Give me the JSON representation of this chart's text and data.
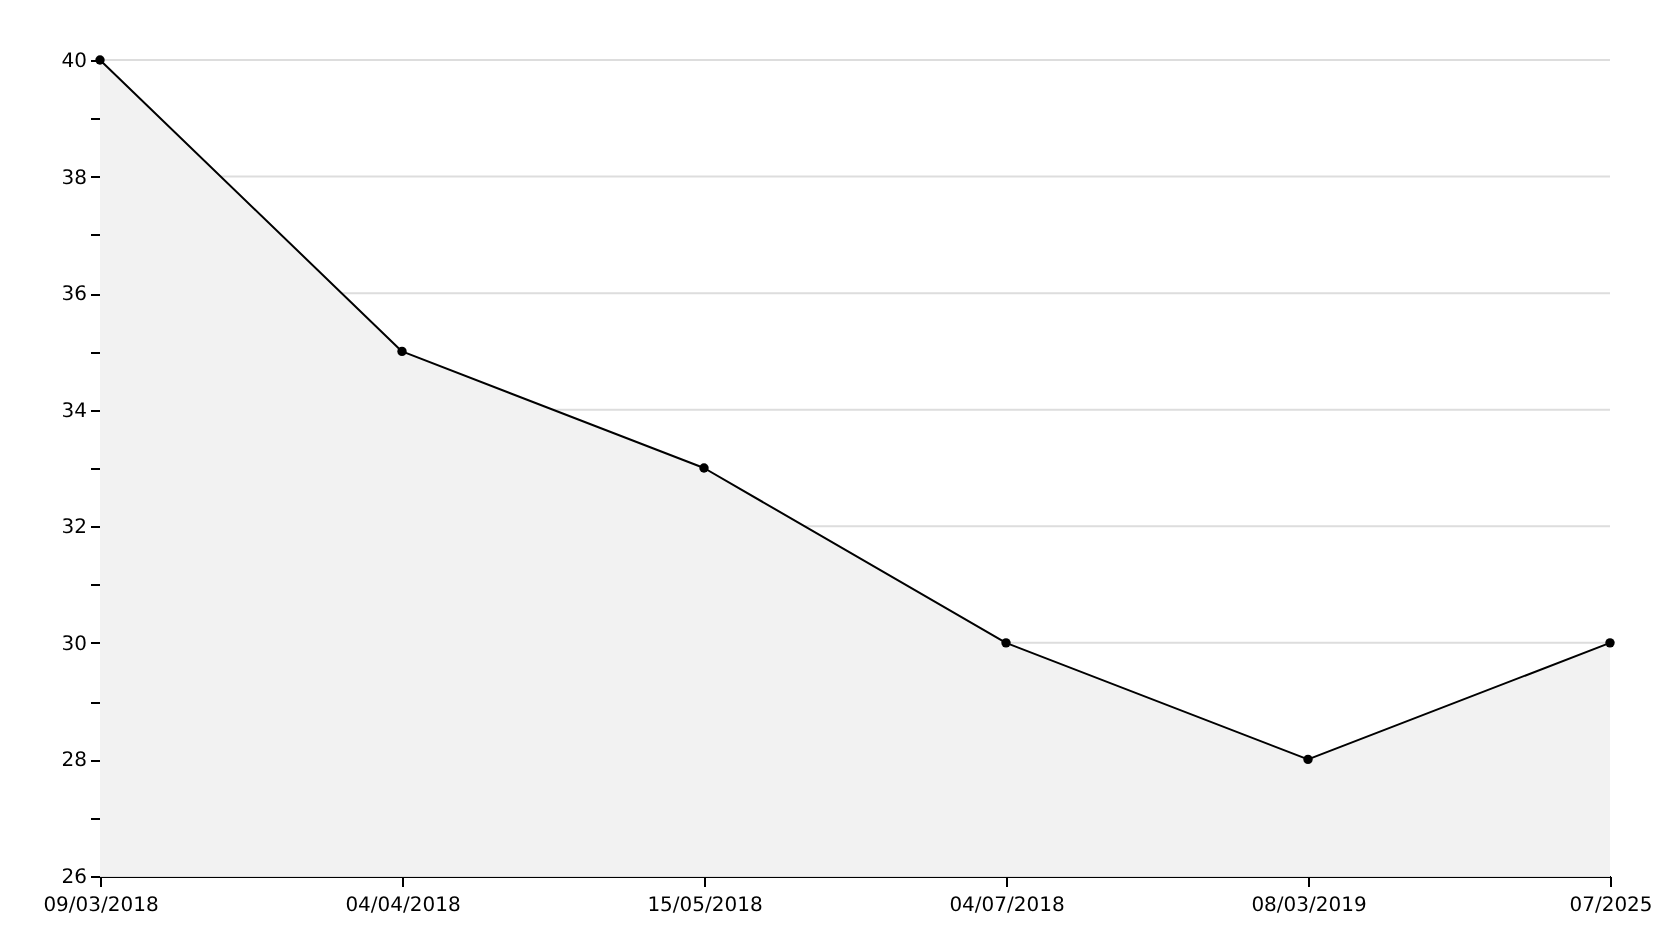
{
  "chart_data": {
    "type": "area",
    "categories": [
      "09/03/2018",
      "04/04/2018",
      "15/05/2018",
      "04/07/2018",
      "08/03/2019",
      "07/2025"
    ],
    "series": [
      {
        "color": "#000000",
        "values": [
          40,
          35,
          33,
          30,
          28,
          30
        ]
      }
    ],
    "ylim": [
      26,
      40
    ],
    "yticks": [
      26,
      {
        "value": 27,
        "label": null
      },
      28,
      {
        "value": 29,
        "label": null
      },
      30,
      {
        "value": 31,
        "label": null
      },
      32,
      {
        "value": 33,
        "label": null
      },
      34,
      {
        "value": 35,
        "label": null
      },
      36,
      {
        "value": 37,
        "label": null
      },
      38,
      {
        "value": 39,
        "label": null
      },
      40
    ],
    "grid": "y",
    "marker": "circle",
    "line_style": "solid"
  }
}
